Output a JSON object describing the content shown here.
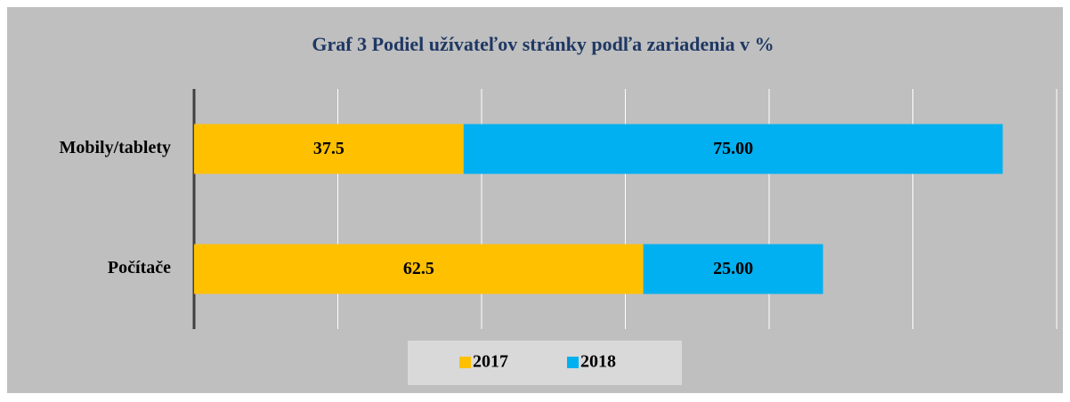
{
  "chart_data": {
    "type": "stacked-bar-horizontal",
    "title": "Graf 3 Podiel užívateľov stránky podľa zariadenia v %",
    "categories": [
      "Mobily/tablety",
      "Počítače"
    ],
    "series": [
      {
        "name": "2017",
        "color": "#ffc000",
        "values": [
          37.5,
          62.5
        ]
      },
      {
        "name": "2018",
        "color": "#00b0f0",
        "values": [
          75,
          25
        ],
        "value_labels": [
          "75.00",
          "25.00"
        ]
      }
    ],
    "xlim": [
      0,
      120
    ],
    "xticks": [
      0,
      20,
      40,
      60,
      80,
      100,
      120
    ],
    "grid": true,
    "legend": "bottom"
  }
}
